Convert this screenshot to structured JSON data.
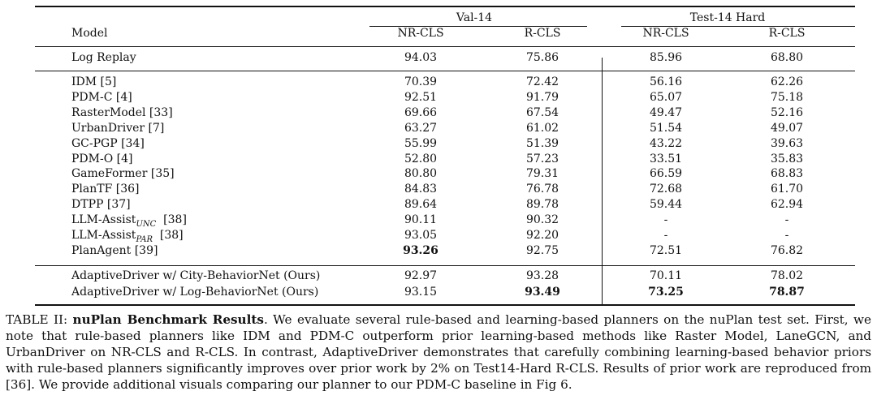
{
  "table": {
    "groups": [
      "Val-14",
      "Test-14 Hard"
    ],
    "headers": [
      "Model",
      "NR-CLS",
      "R-CLS",
      "NR-CLS",
      "R-CLS"
    ],
    "reference_row": {
      "model": "Log Replay",
      "values": [
        "94.03",
        "75.86",
        "85.96",
        "68.80"
      ]
    },
    "rows": [
      {
        "model": "IDM  [5]",
        "sub": "",
        "ref": "",
        "values": [
          "70.39",
          "72.42",
          "56.16",
          "62.26"
        ],
        "bold": []
      },
      {
        "model": "PDM-C  [4]",
        "sub": "",
        "ref": "",
        "values": [
          "92.51",
          "91.79",
          "65.07",
          "75.18"
        ],
        "bold": []
      },
      {
        "model": "RasterModel  [33]",
        "sub": "",
        "ref": "",
        "values": [
          "69.66",
          "67.54",
          "49.47",
          "52.16"
        ],
        "bold": []
      },
      {
        "model": "UrbanDriver  [7]",
        "sub": "",
        "ref": "",
        "values": [
          "63.27",
          "61.02",
          "51.54",
          "49.07"
        ],
        "bold": []
      },
      {
        "model": "GC-PGP  [34]",
        "sub": "",
        "ref": "",
        "values": [
          "55.99",
          "51.39",
          "43.22",
          "39.63"
        ],
        "bold": []
      },
      {
        "model": "PDM-O  [4]",
        "sub": "",
        "ref": "",
        "values": [
          "52.80",
          "57.23",
          "33.51",
          "35.83"
        ],
        "bold": []
      },
      {
        "model": "GameFormer  [35]",
        "sub": "",
        "ref": "",
        "values": [
          "80.80",
          "79.31",
          "66.59",
          "68.83"
        ],
        "bold": []
      },
      {
        "model": "PlanTF  [36]",
        "sub": "",
        "ref": "",
        "values": [
          "84.83",
          "76.78",
          "72.68",
          "61.70"
        ],
        "bold": []
      },
      {
        "model": "DTPP  [37]",
        "sub": "",
        "ref": "",
        "values": [
          "89.64",
          "89.78",
          "59.44",
          "62.94"
        ],
        "bold": []
      },
      {
        "model": "LLM-Assist",
        "sub": "UNC",
        "ref": "  [38]",
        "values": [
          "90.11",
          "90.32",
          "-",
          "-"
        ],
        "bold": []
      },
      {
        "model": "LLM-Assist",
        "sub": "PAR",
        "ref": "  [38]",
        "values": [
          "93.05",
          "92.20",
          "-",
          "-"
        ],
        "bold": []
      },
      {
        "model": "PlanAgent  [39]",
        "sub": "",
        "ref": "",
        "values": [
          "93.26",
          "92.75",
          "72.51",
          "76.82"
        ],
        "bold": [
          0
        ]
      }
    ],
    "ours": [
      {
        "model": "AdaptiveDriver w/ City-BehaviorNet (Ours)",
        "values": [
          "92.97",
          "93.28",
          "70.11",
          "78.02"
        ],
        "bold": []
      },
      {
        "model": "AdaptiveDriver w/ Log-BehaviorNet (Ours)",
        "values": [
          "93.15",
          "93.49",
          "73.25",
          "78.87"
        ],
        "bold": [
          1,
          2,
          3
        ]
      }
    ]
  },
  "caption": {
    "label": "TABLE II: ",
    "title": "nuPlan Benchmark Results",
    "text": ". We evaluate several rule-based and learning-based planners on the nuPlan test set. First, we note that rule-based planners like IDM and PDM-C outperform prior learning-based methods like Raster Model, LaneGCN, and UrbanDriver on NR-CLS and R-CLS. In contrast, AdaptiveDriver demonstrates that carefully combining learning-based behavior priors with rule-based planners significantly improves over prior work by 2% on Test14-Hard R-CLS. Results of prior work are reproduced from [36]. We provide additional visuals comparing our planner to our PDM-C baseline in Fig 6."
  }
}
